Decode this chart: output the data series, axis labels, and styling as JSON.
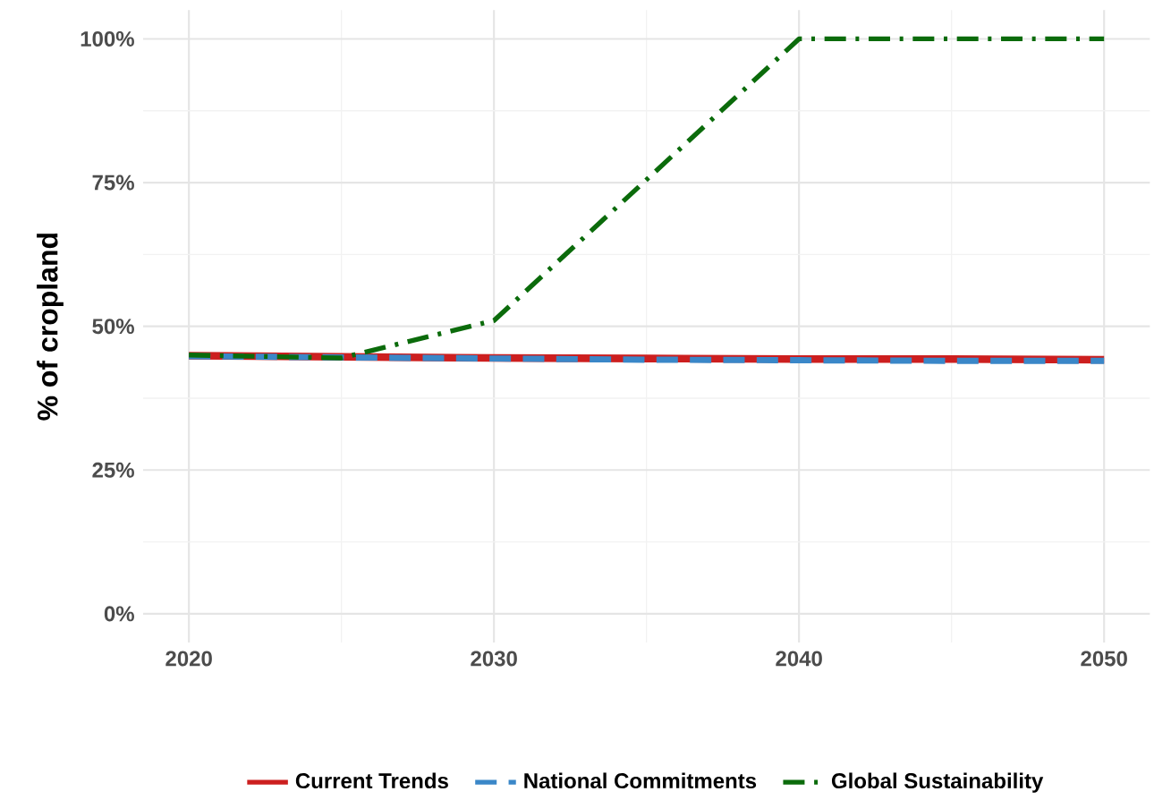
{
  "chart_data": {
    "type": "line",
    "ylabel": "% of cropland",
    "x": [
      2020,
      2025,
      2030,
      2035,
      2040,
      2045,
      2050
    ],
    "series": [
      {
        "name": "Current Trends",
        "color": "#cc1f1f",
        "line_style": "solid",
        "values": [
          44.9,
          44.7,
          44.5,
          44.4,
          44.3,
          44.3,
          44.2
        ]
      },
      {
        "name": "National Commitments",
        "color": "#3a87c8",
        "line_style": "dashed",
        "values": [
          44.8,
          44.6,
          44.4,
          44.2,
          44.1,
          44.0,
          44.0
        ]
      },
      {
        "name": "Global Sustainability",
        "color": "#0b6b0b",
        "line_style": "dashdot",
        "values": [
          45.0,
          44.5,
          51.0,
          75.5,
          100,
          100,
          100
        ]
      }
    ],
    "xlim": [
      2018.5,
      2051.5
    ],
    "ylim": [
      -5,
      105
    ],
    "xticks": [
      2020,
      2030,
      2040,
      2050
    ],
    "yticks": [
      {
        "value": 0,
        "label": "0%"
      },
      {
        "value": 25,
        "label": "25%"
      },
      {
        "value": 50,
        "label": "50%"
      },
      {
        "value": 75,
        "label": "75%"
      },
      {
        "value": 100,
        "label": "100%"
      }
    ],
    "grid": true,
    "legend": "bottom",
    "marker": "none"
  }
}
